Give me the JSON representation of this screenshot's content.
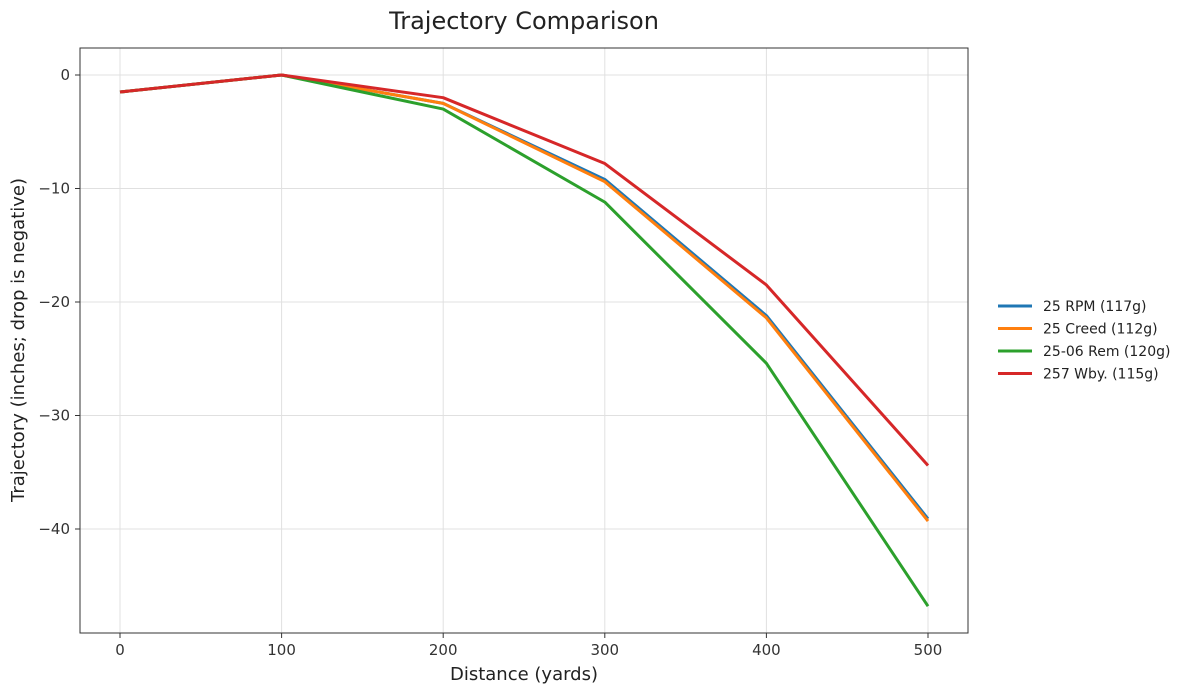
{
  "chart_data": {
    "type": "line",
    "title": "Trajectory Comparison",
    "xlabel": "Distance (yards)",
    "ylabel": "Trajectory (inches; drop is negative)",
    "x": [
      0,
      100,
      200,
      300,
      400,
      500
    ],
    "xticks": [
      "0",
      "100",
      "200",
      "300",
      "400",
      "500"
    ],
    "yticks": [
      "0",
      "−10",
      "−20",
      "−30",
      "−40"
    ],
    "ytick_values": [
      0,
      -10,
      -20,
      -30,
      -40
    ],
    "xlim": [
      -25,
      525
    ],
    "ylim": [
      -49,
      2.3
    ],
    "grid": true,
    "legend_position": "right",
    "series": [
      {
        "name": "25 RPM (117g)",
        "color": "#1f77b4",
        "values": [
          -1.5,
          0,
          -2.5,
          -9.2,
          -21.2,
          -39.1
        ]
      },
      {
        "name": "25 Creed (112g)",
        "color": "#ff7f0e",
        "values": [
          -1.5,
          0,
          -2.5,
          -9.4,
          -21.4,
          -39.3
        ]
      },
      {
        "name": "25-06 Rem (120g)",
        "color": "#2ca02c",
        "values": [
          -1.5,
          0,
          -3.0,
          -11.2,
          -25.4,
          -46.8
        ]
      },
      {
        "name": "257 Wby. (115g)",
        "color": "#d62728",
        "values": [
          -1.5,
          0,
          -2.0,
          -7.8,
          -18.5,
          -34.4
        ]
      }
    ]
  }
}
